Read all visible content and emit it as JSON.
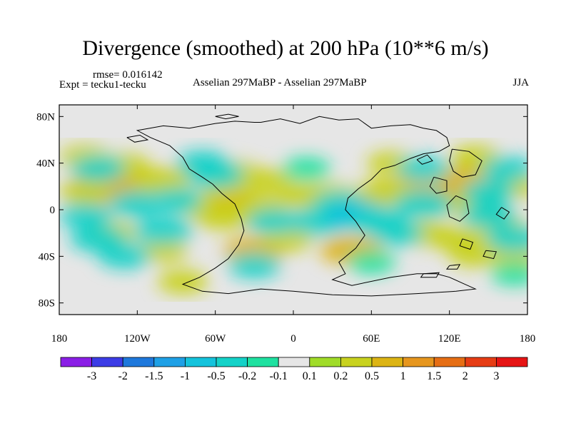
{
  "title": "Divergence (smoothed) at 200 hPa (10**6 m/s)",
  "rmse_text": "rmse= 0.016142",
  "expt_text": "Expt = tecku1-tecku",
  "center_text": "Asselian 297MaBP - Asselian 297MaBP",
  "season_text": "JJA",
  "map": {
    "lon_range": [
      -180,
      180
    ],
    "lat_range": [
      -90,
      90
    ],
    "background_color": "#e6e6e6",
    "lat_ticks": [
      {
        "value": 80,
        "label": "80N"
      },
      {
        "value": 40,
        "label": "40N"
      },
      {
        "value": 0,
        "label": "0"
      },
      {
        "value": -40,
        "label": "40S"
      },
      {
        "value": -80,
        "label": "80S"
      }
    ],
    "lon_ticks": [
      {
        "value": -180,
        "label": "180"
      },
      {
        "value": -120,
        "label": "120W"
      },
      {
        "value": -60,
        "label": "60W"
      },
      {
        "value": 0,
        "label": "0"
      },
      {
        "value": 60,
        "label": "60E"
      },
      {
        "value": 120,
        "label": "120E"
      },
      {
        "value": 180,
        "label": "180"
      }
    ]
  },
  "chart_data": {
    "type": "heatmap",
    "title": "Divergence (smoothed) at 200 hPa (10**6 m/s)",
    "units": "10**6 m/s",
    "field": "divergence difference at 200 hPa, JJA, smoothed",
    "colorbar": {
      "labels": [
        "-3",
        "-2",
        "-1.5",
        "-1",
        "-0.5",
        "-0.2",
        "-0.1",
        "0.1",
        "0.2",
        "0.5",
        "1",
        "1.5",
        "2",
        "3"
      ],
      "colors": [
        "#8a1ee6",
        "#3c3ce6",
        "#1e78dc",
        "#1ea0e6",
        "#14c3dc",
        "#14d2c8",
        "#1ee1a0",
        "#e6e6e6",
        "#a0dc28",
        "#c8d21e",
        "#dcb414",
        "#e6961e",
        "#e66e14",
        "#e63c14",
        "#e61414"
      ]
    },
    "features": [
      {
        "lon": -140,
        "lat": 20,
        "value": 1.0
      },
      {
        "lon": -120,
        "lat": 22,
        "value": 0.7
      },
      {
        "lon": -100,
        "lat": 25,
        "value": 0.4
      },
      {
        "lon": -160,
        "lat": 15,
        "value": 0.3
      },
      {
        "lon": -130,
        "lat": 38,
        "value": 0.25
      },
      {
        "lon": -160,
        "lat": 45,
        "value": 0.25
      },
      {
        "lon": -75,
        "lat": 5,
        "value": 0.3
      },
      {
        "lon": -50,
        "lat": 18,
        "value": 0.2
      },
      {
        "lon": -45,
        "lat": 32,
        "value": 0.2
      },
      {
        "lon": -40,
        "lat": 0,
        "value": 0.8
      },
      {
        "lon": -55,
        "lat": -5,
        "value": 0.45
      },
      {
        "lon": -25,
        "lat": 2,
        "value": 0.35
      },
      {
        "lon": -20,
        "lat": 25,
        "value": 0.25
      },
      {
        "lon": 10,
        "lat": 12,
        "value": 0.35
      },
      {
        "lon": 30,
        "lat": 12,
        "value": 0.25
      },
      {
        "lon": 45,
        "lat": -35,
        "value": 0.55
      },
      {
        "lon": 85,
        "lat": 15,
        "value": 0.6
      },
      {
        "lon": 70,
        "lat": 15,
        "value": 0.4
      },
      {
        "lon": 120,
        "lat": 10,
        "value": 0.7
      },
      {
        "lon": 130,
        "lat": 25,
        "value": 0.5
      },
      {
        "lon": 140,
        "lat": 5,
        "value": 0.4
      },
      {
        "lon": 100,
        "lat": -20,
        "value": 0.35
      },
      {
        "lon": 125,
        "lat": -25,
        "value": 0.3
      },
      {
        "lon": 160,
        "lat": -15,
        "value": 0.35
      },
      {
        "lon": 170,
        "lat": 20,
        "value": 0.25
      },
      {
        "lon": 170,
        "lat": -40,
        "value": 0.25
      },
      {
        "lon": -30,
        "lat": -35,
        "value": 0.5
      },
      {
        "lon": -5,
        "lat": -25,
        "value": 0.3
      },
      {
        "lon": 140,
        "lat": -38,
        "value": 0.35
      },
      {
        "lon": 75,
        "lat": 40,
        "value": 0.2
      },
      {
        "lon": 140,
        "lat": 45,
        "value": 0.25
      },
      {
        "lon": -140,
        "lat": -20,
        "value": 0.3
      },
      {
        "lon": -100,
        "lat": -35,
        "value": 0.2
      },
      {
        "lon": -85,
        "lat": -62,
        "value": 0.25
      },
      {
        "lon": -150,
        "lat": 35,
        "value": -0.35
      },
      {
        "lon": -120,
        "lat": 5,
        "value": -0.4
      },
      {
        "lon": -160,
        "lat": -5,
        "value": -0.3
      },
      {
        "lon": -150,
        "lat": -25,
        "value": -0.4
      },
      {
        "lon": -130,
        "lat": -40,
        "value": -0.3
      },
      {
        "lon": -100,
        "lat": -18,
        "value": -0.45
      },
      {
        "lon": -90,
        "lat": 8,
        "value": -0.3
      },
      {
        "lon": -60,
        "lat": 30,
        "value": -0.4
      },
      {
        "lon": -70,
        "lat": 40,
        "value": -0.3
      },
      {
        "lon": -15,
        "lat": -10,
        "value": -0.35
      },
      {
        "lon": 20,
        "lat": -10,
        "value": -0.5
      },
      {
        "lon": 35,
        "lat": 5,
        "value": -0.3
      },
      {
        "lon": 50,
        "lat": -5,
        "value": -0.6
      },
      {
        "lon": 65,
        "lat": -10,
        "value": -0.45
      },
      {
        "lon": 80,
        "lat": -20,
        "value": -0.3
      },
      {
        "lon": 100,
        "lat": 5,
        "value": -0.45
      },
      {
        "lon": 150,
        "lat": -5,
        "value": -0.35
      },
      {
        "lon": 150,
        "lat": 15,
        "value": -0.3
      },
      {
        "lon": 170,
        "lat": -25,
        "value": -0.4
      },
      {
        "lon": 165,
        "lat": 35,
        "value": -0.3
      },
      {
        "lon": 100,
        "lat": 35,
        "value": -0.3
      },
      {
        "lon": 10,
        "lat": 35,
        "value": -0.2
      },
      {
        "lon": -30,
        "lat": -48,
        "value": -0.3
      },
      {
        "lon": 60,
        "lat": -45,
        "value": -0.2
      },
      {
        "lon": 170,
        "lat": -55,
        "value": -0.2
      }
    ]
  },
  "coastlines": [
    {
      "name": "pangea",
      "points": [
        [
          -25,
          75
        ],
        [
          -10,
          78
        ],
        [
          5,
          74
        ],
        [
          20,
          80
        ],
        [
          35,
          77
        ],
        [
          50,
          78
        ],
        [
          60,
          70
        ],
        [
          75,
          72
        ],
        [
          90,
          73
        ],
        [
          100,
          70
        ],
        [
          110,
          68
        ],
        [
          118,
          62
        ],
        [
          120,
          55
        ],
        [
          112,
          50
        ],
        [
          100,
          48
        ],
        [
          90,
          44
        ],
        [
          78,
          38
        ],
        [
          68,
          35
        ],
        [
          60,
          26
        ],
        [
          50,
          18
        ],
        [
          42,
          10
        ],
        [
          40,
          0
        ],
        [
          48,
          -10
        ],
        [
          55,
          -22
        ],
        [
          48,
          -33
        ],
        [
          35,
          -45
        ],
        [
          40,
          -55
        ],
        [
          30,
          -60
        ],
        [
          45,
          -65
        ],
        [
          75,
          -58
        ],
        [
          95,
          -55
        ],
        [
          110,
          -55
        ],
        [
          120,
          -58
        ],
        [
          130,
          -63
        ],
        [
          140,
          -68
        ],
        [
          125,
          -70
        ],
        [
          95,
          -72
        ],
        [
          60,
          -74
        ],
        [
          30,
          -73
        ],
        [
          0,
          -70
        ],
        [
          -25,
          -68
        ],
        [
          -50,
          -72
        ],
        [
          -70,
          -70
        ],
        [
          -85,
          -64
        ],
        [
          -72,
          -58
        ],
        [
          -60,
          -50
        ],
        [
          -50,
          -42
        ],
        [
          -42,
          -30
        ],
        [
          -38,
          -18
        ],
        [
          -40,
          -8
        ],
        [
          -45,
          5
        ],
        [
          -55,
          14
        ],
        [
          -62,
          22
        ],
        [
          -70,
          28
        ],
        [
          -80,
          35
        ],
        [
          -85,
          45
        ],
        [
          -95,
          55
        ],
        [
          -110,
          62
        ],
        [
          -120,
          68
        ],
        [
          -100,
          72
        ],
        [
          -80,
          70
        ],
        [
          -60,
          74
        ],
        [
          -45,
          76
        ],
        [
          -30,
          75
        ],
        [
          -25,
          75
        ]
      ]
    },
    {
      "name": "north-china-block",
      "points": [
        [
          122,
          52
        ],
        [
          135,
          50
        ],
        [
          145,
          42
        ],
        [
          140,
          30
        ],
        [
          130,
          28
        ],
        [
          123,
          33
        ],
        [
          120,
          42
        ],
        [
          122,
          52
        ]
      ]
    },
    {
      "name": "south-china-block",
      "points": [
        [
          125,
          12
        ],
        [
          133,
          8
        ],
        [
          135,
          -3
        ],
        [
          128,
          -10
        ],
        [
          120,
          -6
        ],
        [
          118,
          4
        ],
        [
          125,
          12
        ]
      ]
    },
    {
      "name": "indochina-block",
      "points": [
        [
          108,
          28
        ],
        [
          118,
          25
        ],
        [
          118,
          16
        ],
        [
          110,
          14
        ],
        [
          105,
          20
        ],
        [
          108,
          28
        ]
      ]
    },
    {
      "name": "east-island-1",
      "points": [
        [
          160,
          2
        ],
        [
          166,
          -2
        ],
        [
          162,
          -8
        ],
        [
          156,
          -4
        ],
        [
          160,
          2
        ]
      ]
    },
    {
      "name": "siberian-island",
      "points": [
        [
          95,
          43
        ],
        [
          103,
          47
        ],
        [
          107,
          42
        ],
        [
          99,
          39
        ],
        [
          95,
          43
        ]
      ]
    },
    {
      "name": "north-island",
      "points": [
        [
          -128,
          62
        ],
        [
          -118,
          64
        ],
        [
          -112,
          60
        ],
        [
          -122,
          58
        ],
        [
          -128,
          62
        ]
      ]
    },
    {
      "name": "arctic-island",
      "points": [
        [
          -60,
          80
        ],
        [
          -50,
          82
        ],
        [
          -42,
          80
        ],
        [
          -52,
          78
        ],
        [
          -60,
          80
        ]
      ]
    },
    {
      "name": "tethys-island-1",
      "points": [
        [
          130,
          -25
        ],
        [
          138,
          -28
        ],
        [
          136,
          -34
        ],
        [
          128,
          -31
        ],
        [
          130,
          -25
        ]
      ]
    },
    {
      "name": "tethys-island-2",
      "points": [
        [
          148,
          -35
        ],
        [
          156,
          -36
        ],
        [
          154,
          -42
        ],
        [
          146,
          -40
        ],
        [
          148,
          -35
        ]
      ]
    },
    {
      "name": "austral-island-1",
      "points": [
        [
          100,
          -55
        ],
        [
          112,
          -54
        ],
        [
          110,
          -58
        ],
        [
          98,
          -58
        ],
        [
          100,
          -55
        ]
      ]
    },
    {
      "name": "austral-island-2",
      "points": [
        [
          120,
          -48
        ],
        [
          128,
          -47
        ],
        [
          126,
          -51
        ],
        [
          118,
          -51
        ],
        [
          120,
          -48
        ]
      ]
    }
  ]
}
